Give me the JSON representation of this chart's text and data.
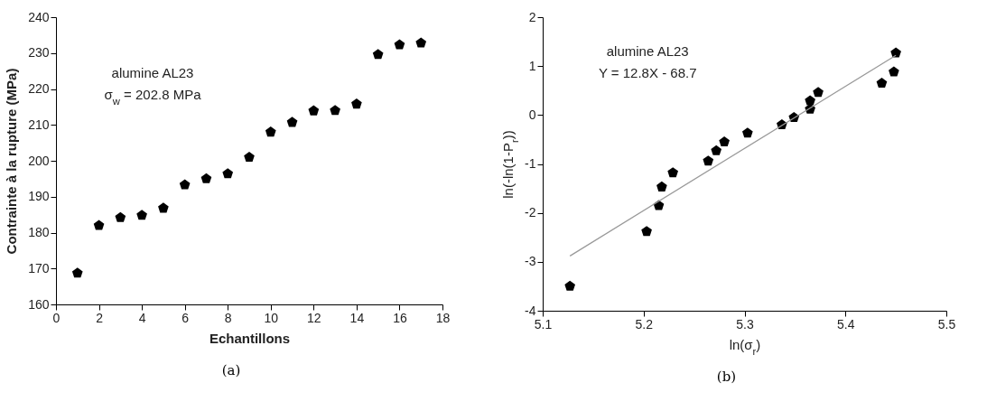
{
  "chart_data": [
    {
      "type": "scatter",
      "xlabel": "Echantillons",
      "ylabel": "Contrainte à la rupture (MPa)",
      "annotations": [
        "alumine AL23",
        "σ$_{w}$ = 202.8 MPa",
        "(a)"
      ],
      "x": [
        1,
        2,
        3,
        4,
        5,
        6,
        7,
        8,
        9,
        10,
        11,
        12,
        13,
        14,
        15,
        16,
        17
      ],
      "series": [
        {
          "color": "#000000",
          "values": [
            168.7,
            182,
            184.2,
            184.8,
            186.8,
            193.3,
            195,
            196.4,
            201,
            208,
            210.7,
            213.9,
            214,
            215.8,
            229.6,
            232.3,
            232.8
          ]
        }
      ],
      "xlim": [
        0,
        18
      ],
      "xticks": [
        0,
        2,
        4,
        6,
        8,
        10,
        12,
        14,
        16,
        18
      ],
      "ylim": [
        160,
        240
      ],
      "yticks": [
        160,
        170,
        180,
        190,
        200,
        210,
        220,
        230,
        240
      ],
      "grid": false
    },
    {
      "type": "scatter",
      "xlabel": "ln(σ$_{r}$)",
      "ylabel": "ln(-ln(1-P$_{r}$))",
      "annotations": [
        "alumine AL23",
        "Y = 12.8X - 68.7",
        "(b)"
      ],
      "series": [
        {
          "color": "#000000",
          "x": [
            5.127,
            5.203,
            5.215,
            5.218,
            5.229,
            5.264,
            5.272,
            5.28,
            5.303,
            5.337,
            5.349,
            5.365,
            5.365,
            5.373,
            5.436,
            5.448,
            5.45
          ],
          "values": [
            -3.5,
            -2.38,
            -1.85,
            -1.47,
            -1.18,
            -0.94,
            -0.73,
            -0.55,
            -0.37,
            -0.2,
            -0.05,
            0.12,
            0.29,
            0.46,
            0.65,
            0.88,
            1.27
          ]
        },
        {
          "type": "line",
          "color": "#999999",
          "x": [
            5.127,
            5.45
          ],
          "values": [
            -2.88,
            1.22
          ]
        }
      ],
      "xlim": [
        5.1,
        5.5
      ],
      "xticks": [
        5.1,
        5.2,
        5.3,
        5.4,
        5.5
      ],
      "ylim": [
        -4,
        2
      ],
      "yticks": [
        -4,
        -3,
        -2,
        -1,
        0,
        1,
        2
      ],
      "grid": false
    }
  ]
}
